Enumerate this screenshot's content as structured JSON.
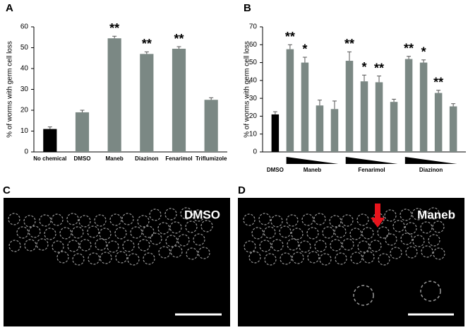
{
  "chart_data": [
    {
      "type": "bar",
      "panel": "A",
      "y_label": "% of worms with germ cell loss",
      "categories": [
        "No chemical",
        "DMSO",
        "Maneb",
        "Diazinon",
        "Fenarimol",
        "Triflumizole"
      ],
      "values": [
        11,
        19,
        54.5,
        47,
        49.5,
        25
      ],
      "errors": [
        1,
        1,
        1,
        1,
        1,
        1
      ],
      "annotations": [
        null,
        null,
        "**",
        "**",
        "**",
        null
      ],
      "colors": [
        "#000000",
        "#7b8884",
        "#7b8884",
        "#7b8884",
        "#7b8884",
        "#7b8884"
      ],
      "ylim": [
        0,
        60
      ],
      "yticks": [
        0,
        10,
        20,
        30,
        40,
        50,
        60
      ]
    },
    {
      "type": "bar",
      "panel": "B",
      "y_label": "% of worms with germ cell loss",
      "categories": [
        "DMSO",
        "Maneb",
        null,
        null,
        null,
        "Fenarimol",
        null,
        null,
        null,
        "Diazinon",
        null,
        null,
        null
      ],
      "values": [
        21,
        57.5,
        50,
        26,
        24,
        51,
        39.5,
        39,
        28,
        52,
        50,
        33,
        25.5
      ],
      "errors": [
        1.5,
        2.5,
        3,
        3,
        4.5,
        5,
        3.5,
        3.5,
        1.5,
        1.5,
        1.5,
        1.5,
        1.5
      ],
      "annotations": [
        null,
        "**",
        "*",
        null,
        null,
        "**",
        "*",
        "**",
        null,
        "**",
        "*",
        "**",
        null
      ],
      "colors": [
        "#000000",
        "#7b8884",
        "#7b8884",
        "#7b8884",
        "#7b8884",
        "#7b8884",
        "#7b8884",
        "#7b8884",
        "#7b8884",
        "#7b8884",
        "#7b8884",
        "#7b8884",
        "#7b8884"
      ],
      "ylim": [
        0,
        70
      ],
      "yticks": [
        0,
        10,
        20,
        30,
        40,
        50,
        60,
        70
      ]
    }
  ],
  "images": [
    {
      "panel": "C",
      "label": "DMSO"
    },
    {
      "panel": "D",
      "label": "Maneb"
    }
  ]
}
